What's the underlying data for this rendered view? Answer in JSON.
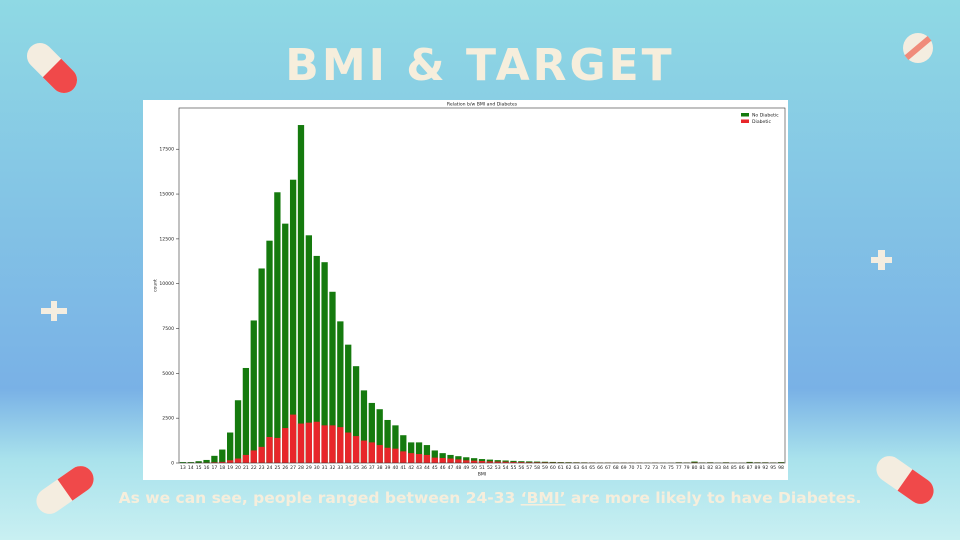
{
  "slide": {
    "title": "BMI & TARGET",
    "caption": {
      "before": "As we can see, people ranged between 24-33 ",
      "link": "‘BMI’",
      "after": " are more likely to have Diabetes."
    }
  },
  "chart_data": {
    "type": "bar",
    "title": "Relation b/w BMI and Diabetes",
    "x_label": "BMI",
    "y_label": "count",
    "categories": [
      "13",
      "14",
      "15",
      "16",
      "17",
      "18",
      "19",
      "20",
      "21",
      "22",
      "23",
      "24",
      "25",
      "26",
      "27",
      "28",
      "29",
      "30",
      "31",
      "32",
      "33",
      "34",
      "35",
      "36",
      "37",
      "38",
      "39",
      "40",
      "41",
      "42",
      "43",
      "44",
      "45",
      "46",
      "47",
      "48",
      "49",
      "50",
      "51",
      "52",
      "53",
      "54",
      "55",
      "56",
      "57",
      "58",
      "59",
      "60",
      "61",
      "62",
      "63",
      "64",
      "65",
      "66",
      "67",
      "68",
      "69",
      "70",
      "71",
      "72",
      "73",
      "74",
      "75",
      "77",
      "79",
      "80",
      "81",
      "82",
      "83",
      "84",
      "85",
      "86",
      "87",
      "89",
      "92",
      "95",
      "98"
    ],
    "series": [
      {
        "name": "No Diabetic",
        "color": "#157a0e",
        "values": [
          50,
          50,
          100,
          170,
          400,
          750,
          1700,
          3500,
          5300,
          7950,
          10850,
          12400,
          15100,
          13350,
          15800,
          18850,
          12700,
          11550,
          11200,
          9550,
          7900,
          6600,
          5400,
          4050,
          3350,
          3000,
          2400,
          2100,
          1550,
          1150,
          1150,
          1000,
          700,
          550,
          450,
          380,
          320,
          270,
          220,
          190,
          160,
          140,
          120,
          100,
          90,
          80,
          70,
          60,
          50,
          45,
          40,
          35,
          30,
          25,
          25,
          20,
          20,
          20,
          20,
          15,
          20,
          15,
          15,
          40,
          30,
          80,
          30,
          40,
          20,
          40,
          15,
          15,
          60,
          40,
          40,
          30,
          50
        ]
      },
      {
        "name": "Diabetic",
        "color": "#e8262a",
        "values": [
          0,
          5,
          10,
          20,
          40,
          60,
          150,
          250,
          450,
          700,
          900,
          1450,
          1400,
          1950,
          2700,
          2200,
          2250,
          2300,
          2100,
          2100,
          2000,
          1700,
          1500,
          1250,
          1150,
          1000,
          850,
          800,
          650,
          550,
          500,
          450,
          300,
          280,
          250,
          200,
          150,
          130,
          110,
          90,
          80,
          70,
          60,
          50,
          40,
          40,
          35,
          30,
          25,
          20,
          20,
          15,
          15,
          10,
          10,
          10,
          10,
          10,
          10,
          5,
          10,
          5,
          5,
          15,
          10,
          30,
          10,
          15,
          5,
          15,
          5,
          5,
          20,
          15,
          15,
          10,
          15
        ]
      }
    ],
    "ylim": [
      0,
      19800
    ],
    "yticks": [
      0,
      2500,
      5000,
      7500,
      10000,
      12500,
      15000,
      17500
    ],
    "legend": "upper right",
    "grid": false
  }
}
